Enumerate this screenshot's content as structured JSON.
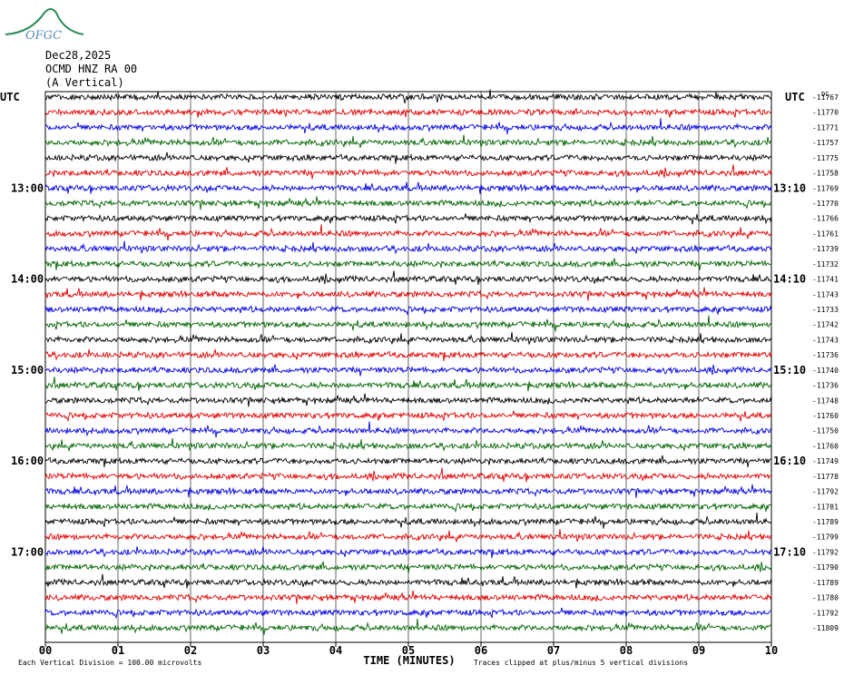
{
  "logo_text": "OFGC",
  "header": {
    "date": "Dec28,2025",
    "station": "OCMD HNZ RA 00",
    "component": "(A Vertical)"
  },
  "colors": {
    "trace_cycle": [
      "#000000",
      "#e00000",
      "#0000e0",
      "#006400"
    ],
    "grid": "#000000"
  },
  "chart_data": {
    "type": "line",
    "left_label": "UTC",
    "right_label": "UTC",
    "dc_label": "DC",
    "left_hour_labels": [
      "13:00",
      "14:00",
      "15:00",
      "16:00",
      "17:00"
    ],
    "right_hour_labels": [
      "13:10",
      "14:10",
      "15:10",
      "16:10",
      "17:10"
    ],
    "hour_label_rows": [
      6,
      12,
      18,
      24,
      30
    ],
    "x_ticks": [
      "00",
      "01",
      "02",
      "03",
      "04",
      "05",
      "06",
      "07",
      "08",
      "09",
      "10"
    ],
    "xlabel": "TIME (MINUTES)",
    "xlim": [
      0,
      10
    ],
    "trace_offsets": [
      -11767,
      -11770,
      -11771,
      -11757,
      -11775,
      -11758,
      -11769,
      -11770,
      -11766,
      -11761,
      -11739,
      -11732,
      -11741,
      -11743,
      -11733,
      -11742,
      -11743,
      -11736,
      -11740,
      -11736,
      -11748,
      -11760,
      -11750,
      -11760,
      -11749,
      -11778,
      -11792,
      -11781,
      -11789,
      -11799,
      -11792,
      -11790,
      -11789,
      -11780,
      -11792,
      -11809
    ],
    "footer_left": "Each Vertical Division =  100.00 microvolts",
    "footer_right": "Traces clipped at plus/minus 5 vertical divisions"
  }
}
